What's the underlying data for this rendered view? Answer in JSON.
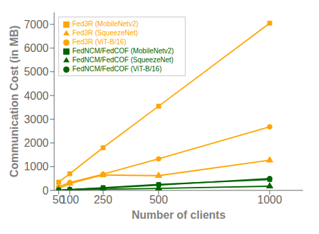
{
  "chart_data": {
    "type": "line",
    "x": [
      50,
      100,
      250,
      500,
      1000
    ],
    "series": [
      {
        "name": "Fed3R (SqueezeNet)",
        "color": "#FFA500",
        "marker": "triangle",
        "values": [
          70,
          290,
          650,
          620,
          1270
        ]
      },
      {
        "name": "Fed3R (ViT-B/16)",
        "color": "#FFA500",
        "marker": "circle",
        "values": [
          150,
          330,
          680,
          1330,
          2680
        ]
      },
      {
        "name": "Fed3R (MobileNetv2)",
        "color": "#FFA500",
        "marker": "square",
        "values": [
          350,
          700,
          1800,
          3550,
          7050
        ]
      },
      {
        "name": "FedNCM/FedCOF (SqueezeNet)",
        "color": "#006400",
        "marker": "triangle",
        "values": [
          5,
          18,
          50,
          85,
          175
        ]
      },
      {
        "name": "FedNCM/FedCOF (ViT-B/16)",
        "color": "#006400",
        "marker": "circle",
        "values": [
          8,
          30,
          95,
          220,
          500
        ]
      },
      {
        "name": "FedNCM/FedCOF (MobileNetv2)",
        "color": "#006400",
        "marker": "square",
        "values": [
          10,
          35,
          115,
          250,
          460
        ]
      }
    ],
    "xlabel": "Number of clients",
    "ylabel": "Communication Cost (in MB)",
    "xlim": [
      30,
      1150
    ],
    "xticks": [
      50,
      100,
      250,
      500,
      1000
    ],
    "ylim": [
      0,
      7500
    ],
    "yticks": [
      0,
      1000,
      2000,
      3000,
      4000,
      5000,
      6000,
      7000
    ],
    "grid": false,
    "legend": "upper left"
  }
}
